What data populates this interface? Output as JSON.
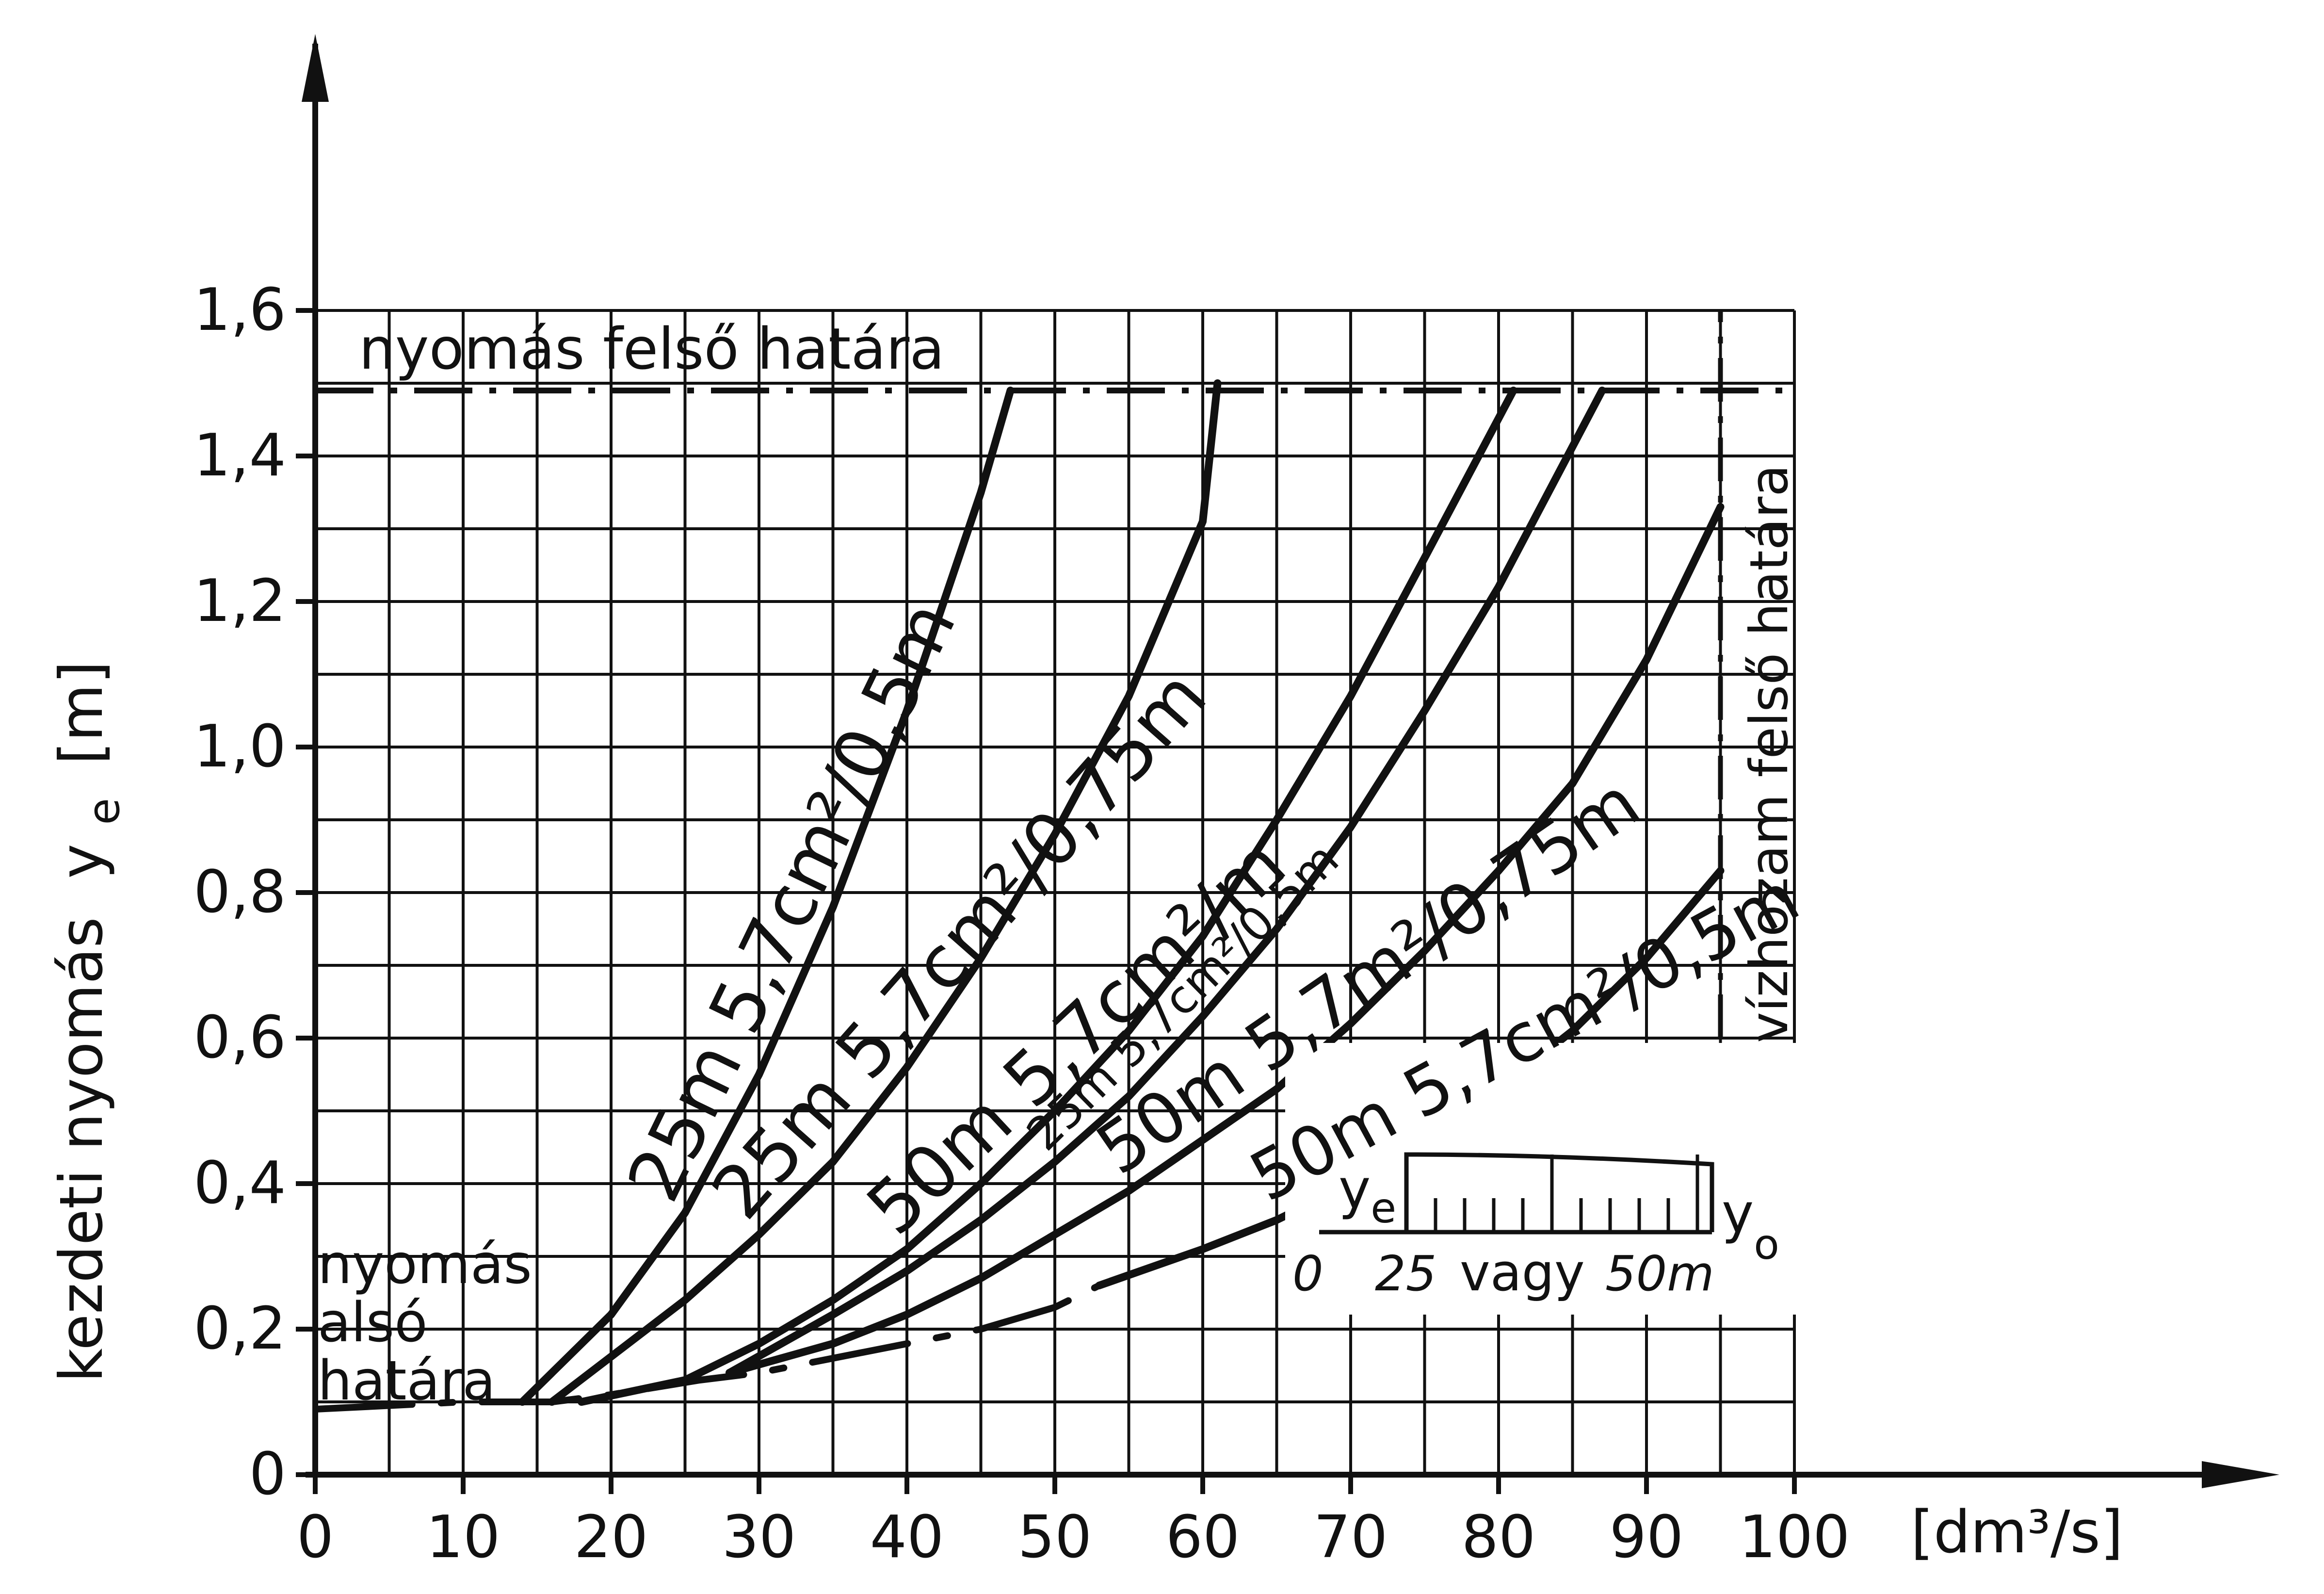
{
  "chart_data": {
    "type": "line",
    "title": "",
    "xlabel": "[dm³/s]",
    "ylabel": "kezdeti nyomás",
    "ylabel_symbol": "y",
    "ylabel_subscript": "e",
    "ylabel_unit": "[m]",
    "xlim": [
      0,
      100
    ],
    "ylim": [
      0,
      1.6
    ],
    "x_ticks": [
      "0",
      "10",
      "20",
      "30",
      "40",
      "50",
      "60",
      "70",
      "80",
      "90",
      "100"
    ],
    "y_ticks": [
      "0",
      "0,2",
      "0,4",
      "0,6",
      "0,8",
      "1,0",
      "1,2",
      "1,4",
      "1,6"
    ],
    "grid": true,
    "upper_pressure_limit": {
      "label": "nyomás felső határa",
      "y": 1.49
    },
    "lower_pressure_limit": {
      "label_lines": [
        "nyomás",
        "alsó",
        "határa"
      ],
      "y": 0.1
    },
    "flow_upper_limit": {
      "label": "vízhozam felső határa",
      "x": 95
    },
    "series": [
      {
        "name": "25m 5,7cm²/0,5m",
        "x": [
          14,
          20,
          25,
          30,
          35,
          40,
          45,
          47
        ],
        "y": [
          0.1,
          0.22,
          0.36,
          0.55,
          0.78,
          1.05,
          1.35,
          1.49
        ]
      },
      {
        "name": "25m 5,7cm²/0,75m",
        "x": [
          16,
          25,
          30,
          35,
          40,
          45,
          50,
          55,
          60,
          61
        ],
        "y": [
          0.1,
          0.24,
          0.33,
          0.43,
          0.56,
          0.71,
          0.88,
          1.07,
          1.31,
          1.5
        ]
      },
      {
        "name": "50m 5,7cm²/m",
        "x": [
          18,
          25,
          30,
          35,
          40,
          45,
          50,
          55,
          60,
          65,
          70,
          75,
          81
        ],
        "y": [
          0.1,
          0.13,
          0.18,
          0.24,
          0.31,
          0.4,
          0.5,
          0.61,
          0.74,
          0.9,
          1.07,
          1.26,
          1.49
        ]
      },
      {
        "name": "25m 5,7cm²/0,5m",
        "x": [
          28,
          35,
          40,
          45,
          50,
          55,
          60,
          65,
          70,
          75,
          80,
          87
        ],
        "y": [
          0.14,
          0.22,
          0.28,
          0.35,
          0.43,
          0.52,
          0.63,
          0.75,
          0.89,
          1.05,
          1.22,
          1.49
        ]
      },
      {
        "name": "50m 5,7m²/0,75m",
        "x": [
          28,
          35,
          40,
          45,
          50,
          55,
          60,
          65,
          70,
          75,
          80,
          85,
          90,
          95
        ],
        "y": [
          0.14,
          0.18,
          0.22,
          0.27,
          0.33,
          0.39,
          0.46,
          0.53,
          0.62,
          0.72,
          0.83,
          0.95,
          1.12,
          1.33
        ]
      },
      {
        "name": "50m 5,7cm²/0,5m",
        "x": [
          53,
          60,
          65,
          70,
          75,
          80,
          85,
          90,
          95
        ],
        "y": [
          0.26,
          0.31,
          0.35,
          0.4,
          0.46,
          0.53,
          0.61,
          0.71,
          0.83
        ]
      },
      {
        "name": "",
        "style": "dashed",
        "x": [
          0,
          10,
          16,
          20,
          26,
          30,
          35,
          40,
          45,
          50,
          53
        ],
        "y": [
          0.09,
          0.1,
          0.1,
          0.11,
          0.13,
          0.14,
          0.16,
          0.18,
          0.2,
          0.23,
          0.26
        ]
      }
    ],
    "inset": {
      "left_label": "y",
      "left_subscript": "e",
      "right_label": "y",
      "right_subscript": "o",
      "scale_text": [
        "0",
        "25",
        "vagy",
        "50m"
      ]
    }
  }
}
